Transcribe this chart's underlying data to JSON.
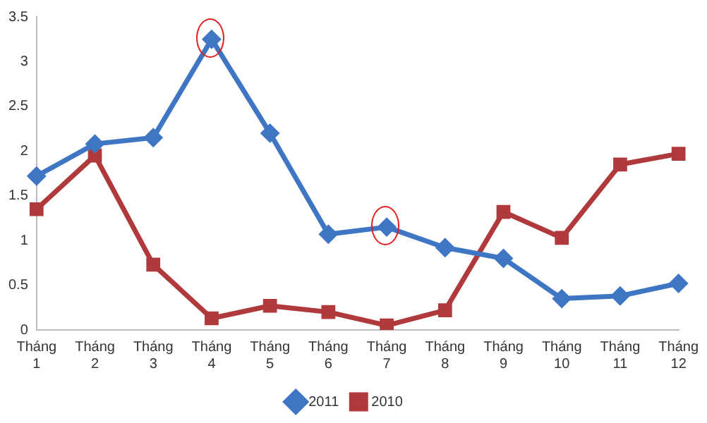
{
  "chart_data": {
    "type": "line",
    "categories": [
      "Tháng 1",
      "Tháng 2",
      "Tháng 3",
      "Tháng 4",
      "Tháng 5",
      "Tháng 6",
      "Tháng 7",
      "Tháng 8",
      "Tháng 9",
      "Tháng 10",
      "Tháng 11",
      "Tháng 12"
    ],
    "series": [
      {
        "name": "2011",
        "color": "#3f76c4",
        "marker": "diamond",
        "values": [
          1.72,
          2.08,
          2.15,
          3.25,
          2.2,
          1.07,
          1.15,
          0.92,
          0.8,
          0.35,
          0.38,
          0.52
        ]
      },
      {
        "name": "2010",
        "color": "#b0393c",
        "marker": "square",
        "values": [
          1.35,
          1.95,
          0.73,
          0.13,
          0.27,
          0.2,
          0.05,
          0.22,
          1.32,
          1.03,
          1.85,
          1.97
        ]
      }
    ],
    "ylim": [
      0,
      3.5
    ],
    "yticks": [
      0,
      0.5,
      1,
      1.5,
      2,
      2.5,
      3,
      3.5
    ],
    "grid": false,
    "legend": "bottom",
    "line_style": "solid"
  }
}
